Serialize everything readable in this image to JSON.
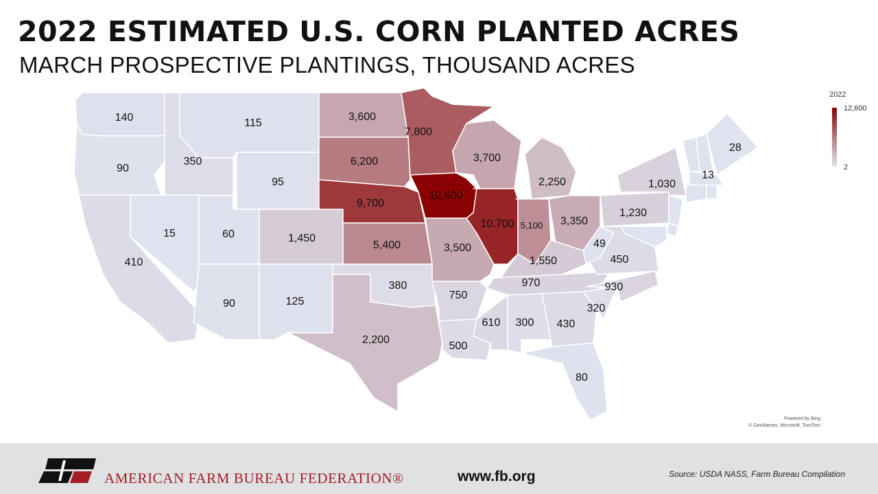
{
  "header": {
    "title": "2022 ESTIMATED U.S. CORN PLANTED ACRES",
    "subtitle": "MARCH PROSPECTIVE PLANTINGS, THOUSAND ACRES"
  },
  "legend": {
    "year": "2022",
    "max": "12,600",
    "min": "2"
  },
  "attribution": {
    "line1": "Powered by Bing",
    "line2": "© GeoNames, Microsoft, TomTom"
  },
  "footer": {
    "org": "AMERICAN FARM BUREAU FEDERATION®",
    "site": "www.fb.org",
    "source": "Source:  USDA NASS, Farm Bureau Compilation"
  },
  "colors": {
    "max": "#8b0000",
    "mid": "#b8858b",
    "min": "#dfe3ef",
    "brand": "#a31d24"
  },
  "chart_data": {
    "type": "choropleth",
    "region": "United States",
    "units": "thousand acres",
    "states": [
      {
        "state": "WA",
        "label": "140",
        "value": 140
      },
      {
        "state": "OR",
        "label": "90",
        "value": 90
      },
      {
        "state": "CA",
        "label": "410",
        "value": 410
      },
      {
        "state": "ID",
        "label": "350",
        "value": 350
      },
      {
        "state": "NV",
        "label": "15",
        "value": 15
      },
      {
        "state": "MT",
        "label": "115",
        "value": 115
      },
      {
        "state": "WY",
        "label": "95",
        "value": 95
      },
      {
        "state": "UT",
        "label": "60",
        "value": 60
      },
      {
        "state": "AZ",
        "label": "90",
        "value": 90
      },
      {
        "state": "CO",
        "label": "1,450",
        "value": 1450
      },
      {
        "state": "NM",
        "label": "125",
        "value": 125
      },
      {
        "state": "ND",
        "label": "3,600",
        "value": 3600
      },
      {
        "state": "SD",
        "label": "6,200",
        "value": 6200
      },
      {
        "state": "NE",
        "label": "9,700",
        "value": 9700
      },
      {
        "state": "KS",
        "label": "5,400",
        "value": 5400
      },
      {
        "state": "OK",
        "label": "380",
        "value": 380
      },
      {
        "state": "TX",
        "label": "2,200",
        "value": 2200
      },
      {
        "state": "MN",
        "label": "7,800",
        "value": 7800
      },
      {
        "state": "IA",
        "label": "12,600",
        "value": 12600
      },
      {
        "state": "MO",
        "label": "3,500",
        "value": 3500
      },
      {
        "state": "AR",
        "label": "750",
        "value": 750
      },
      {
        "state": "LA",
        "label": "500",
        "value": 500
      },
      {
        "state": "WI",
        "label": "3,700",
        "value": 3700
      },
      {
        "state": "IL",
        "label": "10,700",
        "value": 10700
      },
      {
        "state": "MS",
        "label": "610",
        "value": 610
      },
      {
        "state": "MI",
        "label": "2,250",
        "value": 2250
      },
      {
        "state": "IN",
        "label": "5,100",
        "value": 5100
      },
      {
        "state": "OH",
        "label": "3,350",
        "value": 3350
      },
      {
        "state": "KY",
        "label": "1,550",
        "value": 1550
      },
      {
        "state": "TN",
        "label": "970",
        "value": 970
      },
      {
        "state": "AL",
        "label": "300",
        "value": 300
      },
      {
        "state": "GA",
        "label": "430",
        "value": 430
      },
      {
        "state": "FL",
        "label": "80",
        "value": 80
      },
      {
        "state": "SC",
        "label": "320",
        "value": 320
      },
      {
        "state": "NC",
        "label": "930",
        "value": 930
      },
      {
        "state": "VA",
        "label": "450",
        "value": 450
      },
      {
        "state": "WV",
        "label": "49",
        "value": 49
      },
      {
        "state": "PA",
        "label": "1,230",
        "value": 1230
      },
      {
        "state": "NY",
        "label": "1,030",
        "value": 1030
      },
      {
        "state": "VT",
        "label": "13",
        "value": 13
      },
      {
        "state": "ME",
        "label": "28",
        "value": 28
      },
      {
        "state": "NH",
        "label": "",
        "value": null
      },
      {
        "state": "MA",
        "label": "",
        "value": null
      },
      {
        "state": "CT",
        "label": "",
        "value": null
      },
      {
        "state": "RI",
        "label": "",
        "value": null
      },
      {
        "state": "NJ",
        "label": "",
        "value": null
      },
      {
        "state": "DE",
        "label": "",
        "value": null
      },
      {
        "state": "MD",
        "label": "",
        "value": null
      }
    ],
    "scale": {
      "min": 2,
      "max": 12600
    }
  }
}
